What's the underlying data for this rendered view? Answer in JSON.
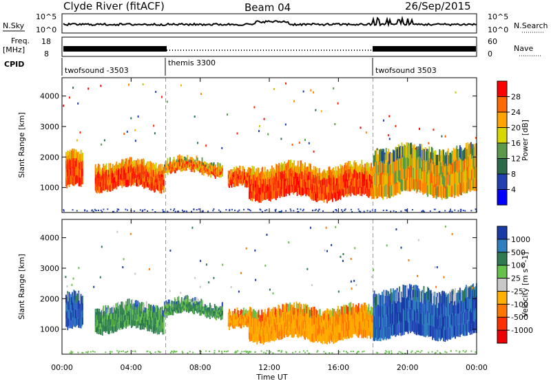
{
  "header": {
    "station": "Clyde River (fitACF)",
    "beam": "Beam 04",
    "date": "26/Sep/2015"
  },
  "strip": {
    "nsky_label": "N.Sky",
    "nsky_ticks": [
      "10^5",
      "10^0"
    ],
    "nsearch_label": "N.Search",
    "nsearch_ticks": [
      "10^5",
      "10^0"
    ],
    "freq_label": "Freq.",
    "freq_unit": "[MHz]",
    "freq_ticks": [
      "18",
      "8"
    ],
    "nave_label": "Nave",
    "nave_ticks": [
      "60",
      "0"
    ],
    "cpid_label": "CPID",
    "cpid_segments": [
      {
        "label": "twofsound -3503",
        "start_hour": 0,
        "end_hour": 6
      },
      {
        "label": "themis 3300",
        "start_hour": 6,
        "end_hour": 18
      },
      {
        "label": "twofsound 3503",
        "start_hour": 18,
        "end_hour": 24
      }
    ]
  },
  "chart_data": [
    {
      "type": "heatmap",
      "name": "power",
      "ylabel": "Slant Range [km]",
      "xlabel": "Time UT",
      "ylim": [
        180,
        4600
      ],
      "yticks": [
        1000,
        2000,
        3000,
        4000
      ],
      "xticks": [
        "00:00",
        "04:00",
        "08:00",
        "12:00",
        "16:00",
        "20:00",
        "00:00"
      ],
      "xlim_hours": [
        0,
        24
      ],
      "colorbar": {
        "label": "Power [dB]",
        "ticks": [
          "28",
          "24",
          "20",
          "16",
          "12",
          "8",
          "4"
        ],
        "colors": [
          "#ff0000",
          "#ff6a00",
          "#ffa500",
          "#d8d800",
          "#5a9a4a",
          "#2a6a4a",
          "#2040b0",
          "#0000ff"
        ]
      },
      "echo_bands": [
        {
          "start_hour": 0.2,
          "end_hour": 1.2,
          "range_km": [
            900,
            2200
          ],
          "dominant": "Red"
        },
        {
          "start_hour": 1.9,
          "end_hour": 5.9,
          "range_km": [
            900,
            1900
          ],
          "dominant": "Red"
        },
        {
          "start_hour": 5.9,
          "end_hour": 9.3,
          "range_km": [
            1400,
            2000
          ],
          "dominant": "Orange"
        },
        {
          "start_hour": 9.6,
          "end_hour": 10.8,
          "range_km": [
            900,
            1600
          ],
          "dominant": "Red"
        },
        {
          "start_hour": 10.8,
          "end_hour": 18.0,
          "range_km": [
            600,
            1800
          ],
          "dominant": "Red"
        },
        {
          "start_hour": 18.0,
          "end_hour": 24.0,
          "range_km": [
            700,
            2400
          ],
          "dominant": "Mixed"
        }
      ]
    },
    {
      "type": "heatmap",
      "name": "velocity",
      "ylabel": "Slant Range [km]",
      "xlabel": "Time UT",
      "ylim": [
        180,
        4600
      ],
      "yticks": [
        1000,
        2000,
        3000,
        4000
      ],
      "xticks": [
        "00:00",
        "04:00",
        "08:00",
        "12:00",
        "16:00",
        "20:00",
        "00:00"
      ],
      "xlim_hours": [
        0,
        24
      ],
      "colorbar": {
        "label": "Velocity [m s^-1]",
        "ticks": [
          "1000",
          "500",
          "100",
          "25",
          "-25",
          "-100",
          "-500",
          "-1000"
        ],
        "colors": [
          "#1a3aa8",
          "#2f7fbf",
          "#2f7a4f",
          "#66c24a",
          "#c8c8c8",
          "#ffb000",
          "#ff7700",
          "#ff3000",
          "#ee0000"
        ]
      },
      "echo_bands": [
        {
          "start_hour": 0.2,
          "end_hour": 1.2,
          "range_km": [
            900,
            2200
          ],
          "dominant": "Blue"
        },
        {
          "start_hour": 1.9,
          "end_hour": 5.9,
          "range_km": [
            900,
            1900
          ],
          "dominant": "Green"
        },
        {
          "start_hour": 5.9,
          "end_hour": 9.3,
          "range_km": [
            1400,
            2000
          ],
          "dominant": "Green"
        },
        {
          "start_hour": 9.6,
          "end_hour": 10.8,
          "range_km": [
            900,
            1600
          ],
          "dominant": "Orange"
        },
        {
          "start_hour": 10.8,
          "end_hour": 18.0,
          "range_km": [
            600,
            1800
          ],
          "dominant": "Orange"
        },
        {
          "start_hour": 18.0,
          "end_hour": 24.0,
          "range_km": [
            700,
            2400
          ],
          "dominant": "Blue"
        }
      ]
    }
  ]
}
